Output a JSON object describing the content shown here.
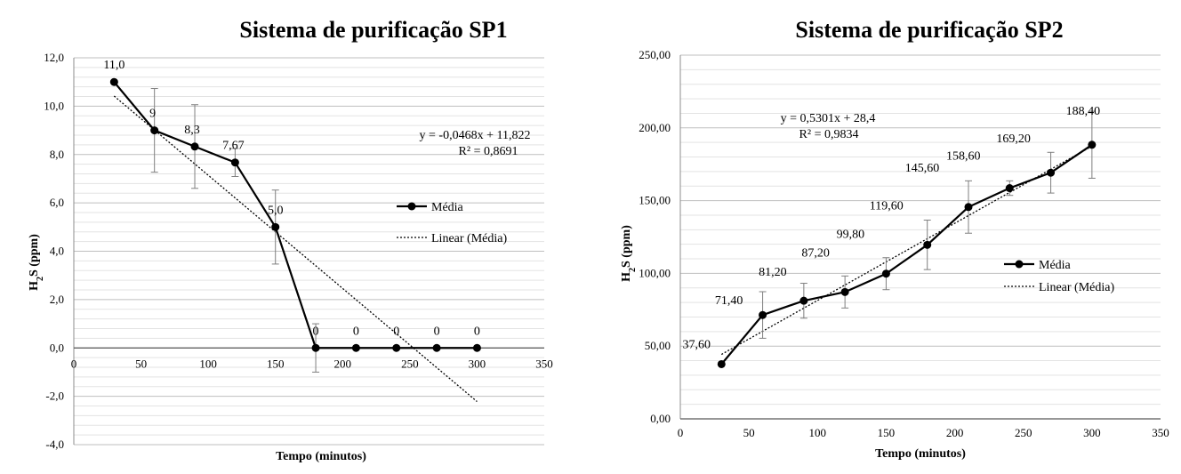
{
  "chart_data": [
    {
      "type": "line",
      "title": "Sistema de purificação SP1",
      "xlabel": "Tempo (minutos)",
      "ylabel_main": "H",
      "ylabel_sub": "2",
      "ylabel_rest": "S (ppm)",
      "xlim": [
        0,
        350
      ],
      "ylim": [
        -4,
        12
      ],
      "x_ticks": [
        0,
        50,
        100,
        150,
        200,
        250,
        300,
        350
      ],
      "x_tick_labels": [
        "0",
        "50",
        "100",
        "150",
        "200",
        "250",
        "300",
        "350"
      ],
      "y_ticks": [
        -4,
        -2,
        0,
        2,
        4,
        6,
        8,
        10,
        12
      ],
      "y_tick_labels": [
        "-4,0",
        "-2,0",
        "0,0",
        "2,0",
        "4,0",
        "6,0",
        "8,0",
        "10,0",
        "12,0"
      ],
      "grid": "horizontal",
      "legend_position": "right",
      "series": [
        {
          "name": "Média",
          "x": [
            30,
            60,
            90,
            120,
            150,
            180,
            210,
            240,
            270,
            300
          ],
          "y": [
            11.0,
            9.0,
            8.33,
            7.67,
            5.0,
            0,
            0,
            0,
            0,
            0
          ],
          "err": [
            0,
            1.73,
            1.73,
            0.58,
            1.53,
            1.0,
            0,
            0,
            0,
            0
          ],
          "labels": [
            "11,0",
            "9",
            "8,3",
            "7,67",
            "5,0",
            "0",
            "0",
            "0",
            "0",
            "0"
          ]
        }
      ],
      "trendline": {
        "name": "Linear (Média)",
        "slope": -0.0468,
        "intercept": 11.822,
        "x_range": [
          30,
          300
        ],
        "equation": "y = -0,0468x + 11,822",
        "r2": "R² = 0,8691"
      }
    },
    {
      "type": "line",
      "title": "Sistema de purificação SP2",
      "xlabel": "Tempo (minutos)",
      "ylabel_main": "H",
      "ylabel_sub": "2",
      "ylabel_rest": "S (ppm)",
      "xlim": [
        0,
        350
      ],
      "ylim": [
        0,
        250
      ],
      "x_ticks": [
        0,
        50,
        100,
        150,
        200,
        250,
        300,
        350
      ],
      "x_tick_labels": [
        "0",
        "50",
        "100",
        "150",
        "200",
        "250",
        "300",
        "350"
      ],
      "y_ticks": [
        0,
        50,
        100,
        150,
        200,
        250
      ],
      "y_tick_labels": [
        "0,00",
        "50,00",
        "100,00",
        "150,00",
        "200,00",
        "250,00"
      ],
      "grid": "horizontal",
      "legend_position": "right",
      "series": [
        {
          "name": "Média",
          "x": [
            30,
            60,
            90,
            120,
            150,
            180,
            210,
            240,
            270,
            300
          ],
          "y": [
            37.6,
            71.4,
            81.2,
            87.2,
            99.8,
            119.6,
            145.6,
            158.6,
            169.2,
            188.4
          ],
          "err": [
            0,
            16,
            12,
            11,
            11,
            17,
            18,
            5,
            14,
            23
          ],
          "labels": [
            "37,60",
            "71,40",
            "81,20",
            "87,20",
            "99,80",
            "119,60",
            "145,60",
            "158,60",
            "169,20",
            "188,40"
          ]
        }
      ],
      "trendline": {
        "name": "Linear (Média)",
        "slope": 0.5301,
        "intercept": 28.4,
        "x_range": [
          30,
          300
        ],
        "equation": "y = 0,5301x + 28,4",
        "r2": "R² = 0,9834"
      }
    }
  ]
}
